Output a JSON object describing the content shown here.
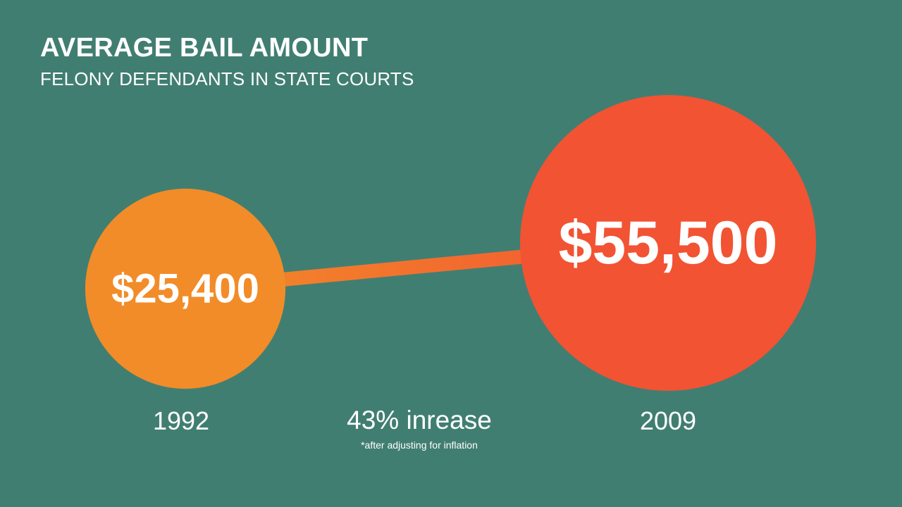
{
  "chart_data": {
    "type": "bubble",
    "title": "AVERAGE BAIL AMOUNT",
    "subtitle": "FELONY DEFENDANTS IN STATE COURTS",
    "points": [
      {
        "year": "1992",
        "value": 25400,
        "label": "$25,400",
        "color": "#F28C28"
      },
      {
        "year": "2009",
        "value": 55500,
        "label": "$55,500",
        "color": "#F25333"
      }
    ],
    "connector_colors": [
      "#F28C28",
      "#F25333"
    ],
    "change_label": "43% inrease",
    "footnote": "*after adjusting for inflation"
  },
  "colors": {
    "background": "#417E72",
    "text": "#FFFFFF"
  }
}
